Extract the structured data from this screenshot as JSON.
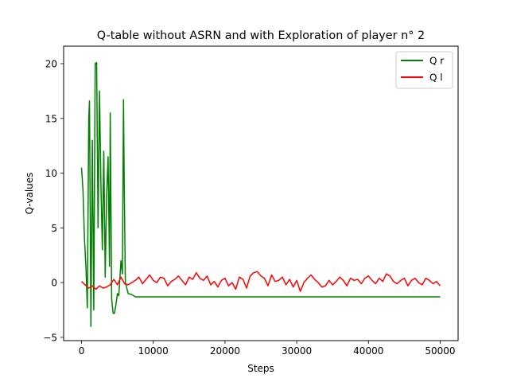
{
  "chart_data": {
    "type": "line",
    "title": "Q-table without ASRN and with Exploration of player n° 2",
    "xlabel": "Steps",
    "ylabel": "Q-values",
    "xlim": [
      -2500,
      52500
    ],
    "ylim": [
      -5.3,
      21.6
    ],
    "xticks": [
      0,
      10000,
      20000,
      30000,
      40000,
      50000
    ],
    "yticks": [
      -5,
      0,
      5,
      10,
      15,
      20
    ],
    "grid": false,
    "legend_position": "top-right",
    "series": [
      {
        "name": "Q r",
        "color": "#008000",
        "points": [
          [
            0,
            10.5
          ],
          [
            200,
            8.5
          ],
          [
            400,
            4.0
          ],
          [
            600,
            1.5
          ],
          [
            800,
            -2.3
          ],
          [
            1000,
            15.0
          ],
          [
            1100,
            16.6
          ],
          [
            1300,
            -4.0
          ],
          [
            1500,
            13.0
          ],
          [
            1700,
            -2.5
          ],
          [
            1900,
            20.0
          ],
          [
            2100,
            20.1
          ],
          [
            2300,
            5.0
          ],
          [
            2500,
            17.5
          ],
          [
            2700,
            9.0
          ],
          [
            2900,
            3.0
          ],
          [
            3100,
            12.0
          ],
          [
            3300,
            0.5
          ],
          [
            3500,
            8.0
          ],
          [
            3700,
            11.5
          ],
          [
            3900,
            1.5
          ],
          [
            4000,
            15.5
          ],
          [
            4200,
            -1.5
          ],
          [
            4400,
            -2.8
          ],
          [
            4600,
            -2.8
          ],
          [
            4800,
            -2.0
          ],
          [
            5000,
            -1.0
          ],
          [
            5200,
            -1.2
          ],
          [
            5500,
            2.0
          ],
          [
            5700,
            0.8
          ],
          [
            5850,
            16.7
          ],
          [
            5950,
            9.0
          ],
          [
            6100,
            0.0
          ],
          [
            6500,
            -1.0
          ],
          [
            7000,
            -1.1
          ],
          [
            7500,
            -1.3
          ],
          [
            50000,
            -1.3
          ]
        ]
      },
      {
        "name": "Q l",
        "color": "#ff0000",
        "points": [
          [
            0,
            0.1
          ],
          [
            500,
            -0.2
          ],
          [
            1000,
            -0.5
          ],
          [
            1500,
            -0.3
          ],
          [
            2000,
            -0.6
          ],
          [
            2500,
            -0.3
          ],
          [
            3000,
            -0.5
          ],
          [
            3500,
            -0.4
          ],
          [
            4000,
            -0.2
          ],
          [
            4500,
            0.3
          ],
          [
            5000,
            -0.2
          ],
          [
            5500,
            0.5
          ],
          [
            6000,
            -0.1
          ],
          [
            6500,
            -0.2
          ],
          [
            7000,
            0.0
          ],
          [
            7500,
            0.2
          ],
          [
            8000,
            0.5
          ],
          [
            8500,
            -0.1
          ],
          [
            9000,
            0.3
          ],
          [
            9500,
            0.7
          ],
          [
            10000,
            0.2
          ],
          [
            10500,
            0.0
          ],
          [
            11000,
            0.5
          ],
          [
            11500,
            0.4
          ],
          [
            12000,
            -0.3
          ],
          [
            12500,
            0.1
          ],
          [
            13000,
            0.3
          ],
          [
            13500,
            0.6
          ],
          [
            14000,
            0.2
          ],
          [
            14500,
            -0.2
          ],
          [
            15000,
            0.5
          ],
          [
            15500,
            0.3
          ],
          [
            16000,
            0.9
          ],
          [
            16500,
            0.4
          ],
          [
            17000,
            0.2
          ],
          [
            17500,
            0.6
          ],
          [
            18000,
            -0.2
          ],
          [
            18500,
            0.1
          ],
          [
            19000,
            -0.4
          ],
          [
            19500,
            0.2
          ],
          [
            20000,
            0.4
          ],
          [
            20500,
            -0.3
          ],
          [
            21000,
            0.0
          ],
          [
            21500,
            -0.6
          ],
          [
            22000,
            0.5
          ],
          [
            22500,
            0.3
          ],
          [
            23000,
            -0.5
          ],
          [
            23500,
            0.6
          ],
          [
            24000,
            0.9
          ],
          [
            24500,
            1.0
          ],
          [
            25000,
            0.6
          ],
          [
            25500,
            0.4
          ],
          [
            26000,
            -0.3
          ],
          [
            26500,
            0.7
          ],
          [
            27000,
            0.1
          ],
          [
            27500,
            0.2
          ],
          [
            28000,
            0.5
          ],
          [
            28500,
            -0.2
          ],
          [
            29000,
            0.3
          ],
          [
            29500,
            -0.4
          ],
          [
            30000,
            0.2
          ],
          [
            30500,
            -0.8
          ],
          [
            31000,
            0.0
          ],
          [
            31500,
            0.4
          ],
          [
            32000,
            0.7
          ],
          [
            32500,
            0.3
          ],
          [
            33000,
            0.0
          ],
          [
            33500,
            -0.4
          ],
          [
            34000,
            -0.3
          ],
          [
            34500,
            0.2
          ],
          [
            35000,
            -0.2
          ],
          [
            35500,
            0.1
          ],
          [
            36000,
            0.5
          ],
          [
            36500,
            0.2
          ],
          [
            37000,
            -0.3
          ],
          [
            37500,
            0.4
          ],
          [
            38000,
            0.2
          ],
          [
            38500,
            0.3
          ],
          [
            39000,
            -0.1
          ],
          [
            39500,
            0.4
          ],
          [
            40000,
            0.6
          ],
          [
            40500,
            0.2
          ],
          [
            41000,
            -0.1
          ],
          [
            41500,
            0.4
          ],
          [
            42000,
            0.1
          ],
          [
            42500,
            0.8
          ],
          [
            43000,
            0.6
          ],
          [
            43500,
            0.1
          ],
          [
            44000,
            -0.1
          ],
          [
            44500,
            0.2
          ],
          [
            45000,
            0.4
          ],
          [
            45500,
            -0.3
          ],
          [
            46000,
            0.2
          ],
          [
            46500,
            0.4
          ],
          [
            47000,
            0.0
          ],
          [
            47500,
            -0.2
          ],
          [
            48000,
            0.4
          ],
          [
            48500,
            0.2
          ],
          [
            49000,
            -0.1
          ],
          [
            49500,
            0.1
          ],
          [
            50000,
            -0.3
          ]
        ]
      }
    ]
  }
}
